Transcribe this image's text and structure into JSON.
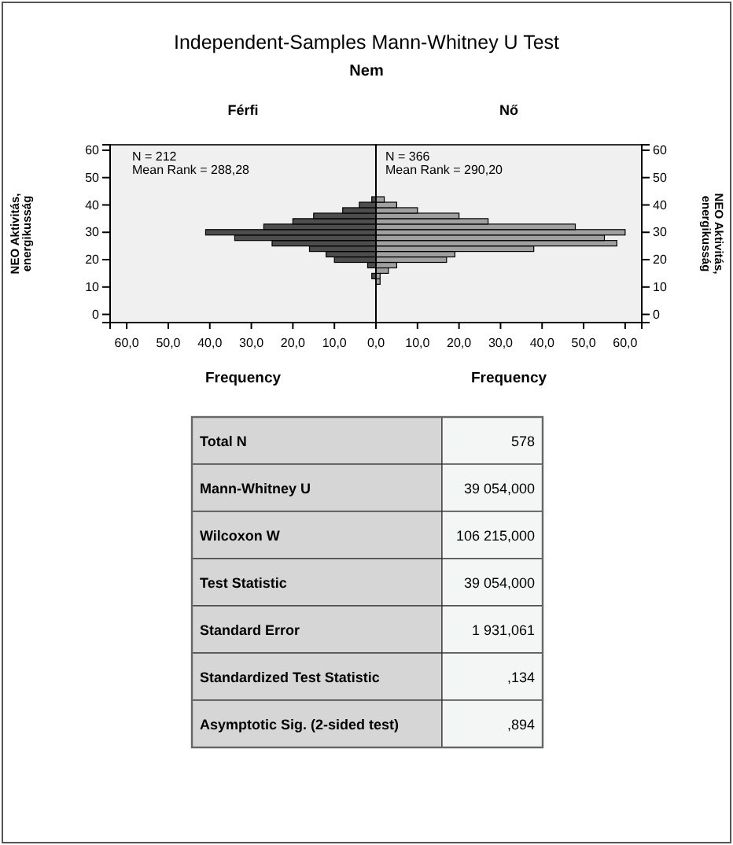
{
  "chart_data": [
    {
      "type": "histogram",
      "orientation": "horizontal",
      "title": "Independent-Samples Mann-Whitney U Test",
      "subtitle": "Nem",
      "xlabel": "Frequency",
      "ylabel": "NEO Aktivitás, energikusság",
      "annotations": [
        "Férfi",
        "N = 212",
        "Mean Rank = 288,28"
      ],
      "color": "#4d4d4d",
      "xlim": [
        64,
        0
      ],
      "xticks": [
        {
          "value": 60,
          "label": "60,0"
        },
        {
          "value": 50,
          "label": "50,0"
        },
        {
          "value": 40,
          "label": "40,0"
        },
        {
          "value": 30,
          "label": "30,0"
        },
        {
          "value": 20,
          "label": "20,0"
        },
        {
          "value": 10,
          "label": "10,0"
        },
        {
          "value": 0,
          "label": "0,0"
        }
      ],
      "ylim": [
        -3,
        62
      ],
      "yticks": [
        0,
        10,
        20,
        30,
        40,
        50,
        60
      ],
      "bins": [
        11,
        13,
        15,
        17,
        19,
        21,
        23,
        25,
        27,
        29,
        31,
        33,
        35,
        37,
        39,
        41,
        43
      ],
      "values": [
        0,
        1,
        0,
        2,
        10,
        12,
        16,
        25,
        34,
        41,
        27,
        20,
        15,
        8,
        4,
        1
      ]
    },
    {
      "type": "histogram",
      "orientation": "horizontal",
      "xlabel": "Frequency",
      "ylabel": "NEO Aktivitás, energikusság",
      "annotations": [
        "Nő",
        "N = 366",
        "Mean Rank = 290,20"
      ],
      "color": "#a0a0a0",
      "xlim": [
        0,
        64
      ],
      "xticks": [
        {
          "value": 0,
          "label": null
        },
        {
          "value": 10,
          "label": "10,0"
        },
        {
          "value": 20,
          "label": "20,0"
        },
        {
          "value": 30,
          "label": "30,0"
        },
        {
          "value": 40,
          "label": "40,0"
        },
        {
          "value": 50,
          "label": "50,0"
        },
        {
          "value": 60,
          "label": "60,0"
        }
      ],
      "ylim": [
        -3,
        62
      ],
      "yticks": [
        0,
        10,
        20,
        30,
        40,
        50,
        60
      ],
      "bins": [
        11,
        13,
        15,
        17,
        19,
        21,
        23,
        25,
        27,
        29,
        31,
        33,
        35,
        37,
        39,
        41,
        43
      ],
      "values": [
        1,
        1,
        3,
        5,
        17,
        19,
        38,
        58,
        55,
        60,
        48,
        27,
        20,
        10,
        5,
        2
      ]
    },
    {
      "type": "other",
      "annotations": [
        "Total N",
        "578",
        "Mann-Whitney U",
        "39 054,000",
        "Wilcoxon W",
        "106 215,000",
        "Test Statistic",
        "39 054,000",
        "Standard Error",
        "1 931,061",
        "Standardized Test Statistic",
        ",134",
        "Asymptotic Sig. (2-sided test)",
        ",894"
      ]
    }
  ]
}
